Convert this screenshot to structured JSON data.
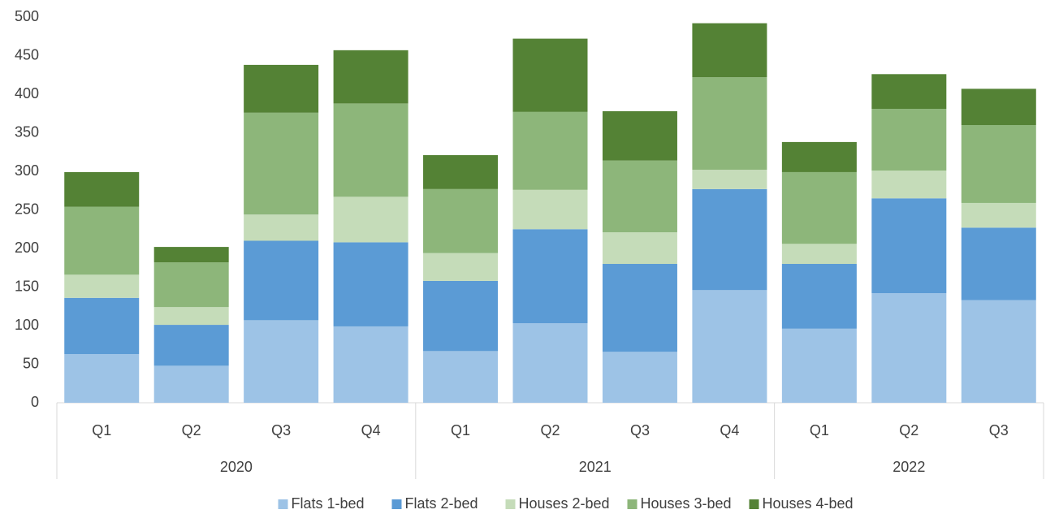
{
  "chart_data": {
    "type": "stacked_bar",
    "groups": [
      {
        "label": "2020",
        "categories": [
          "Q1",
          "Q2",
          "Q3",
          "Q4"
        ]
      },
      {
        "label": "2021",
        "categories": [
          "Q1",
          "Q2",
          "Q3",
          "Q4"
        ]
      },
      {
        "label": "2022",
        "categories": [
          "Q1",
          "Q2",
          "Q3"
        ]
      }
    ],
    "series": [
      {
        "name": "Flats 1-bed",
        "color": "#9dc3e6",
        "values": [
          63,
          48,
          107,
          99,
          67,
          103,
          66,
          146,
          96,
          142,
          133
        ]
      },
      {
        "name": "Flats 2-bed",
        "color": "#5b9bd5",
        "values": [
          73,
          53,
          103,
          109,
          91,
          122,
          114,
          131,
          84,
          123,
          94
        ]
      },
      {
        "name": "Houses 2-bed",
        "color": "#c5dcb9",
        "values": [
          30,
          23,
          34,
          59,
          36,
          51,
          41,
          25,
          26,
          36,
          32
        ]
      },
      {
        "name": "Houses 3-bed",
        "color": "#8db67a",
        "values": [
          88,
          58,
          132,
          121,
          83,
          101,
          93,
          120,
          93,
          80,
          101
        ]
      },
      {
        "name": "Houses 4-bed",
        "color": "#548235",
        "values": [
          45,
          20,
          62,
          69,
          44,
          95,
          64,
          70,
          39,
          45,
          47
        ]
      }
    ],
    "ylim": [
      0,
      500
    ],
    "yticks": [
      0,
      50,
      100,
      150,
      200,
      250,
      300,
      350,
      400,
      450,
      500
    ],
    "legend": "bottom"
  }
}
